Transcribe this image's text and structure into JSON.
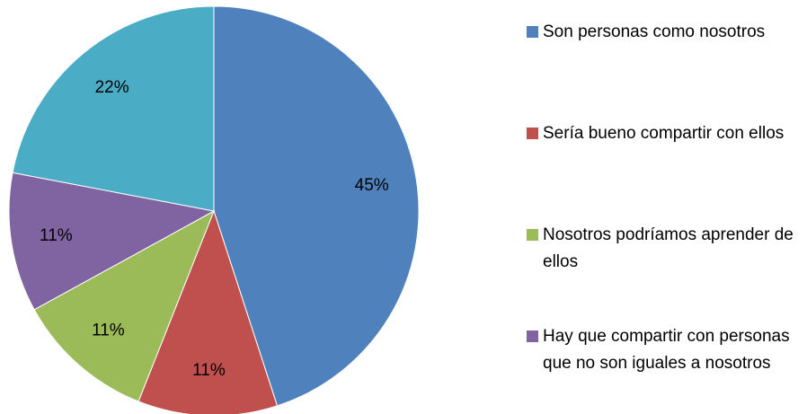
{
  "chart_data": {
    "type": "pie",
    "categories": [
      "Son personas como nosotros",
      "Sería bueno compartir con ellos",
      "Nosotros podríamos aprender de ellos",
      "Hay que compartir con personas que no son iguales a nosotros",
      null
    ],
    "values": [
      45,
      11,
      11,
      11,
      22
    ],
    "value_labels": [
      "45%",
      "11%",
      "11%",
      "11%",
      "22%"
    ],
    "colors": [
      "#4f81bd",
      "#c0504d",
      "#9bbb59",
      "#8064a2",
      "#4bacc6"
    ]
  }
}
